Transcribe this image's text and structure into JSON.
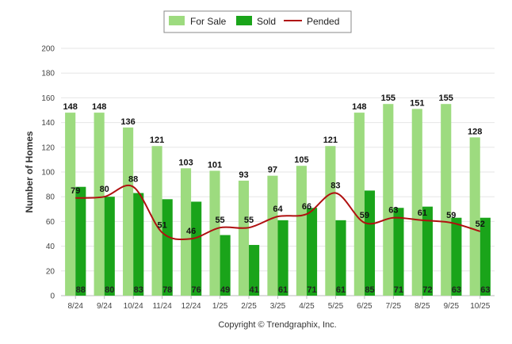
{
  "chart_data": {
    "type": "bar",
    "ylabel": "Number of Homes",
    "ylim": [
      0,
      200
    ],
    "yticks": [
      0,
      20,
      40,
      60,
      80,
      100,
      120,
      140,
      160,
      180,
      200
    ],
    "grid": true,
    "legend_position": "top-center",
    "categories": [
      "8/24",
      "9/24",
      "10/24",
      "11/24",
      "12/24",
      "1/25",
      "2/25",
      "3/25",
      "4/25",
      "5/25",
      "6/25",
      "7/25",
      "8/25",
      "9/25",
      "10/25"
    ],
    "series": [
      {
        "name": "For Sale",
        "type": "bar",
        "color": "#9ddb7f",
        "values": [
          148,
          148,
          136,
          121,
          103,
          101,
          93,
          97,
          105,
          121,
          148,
          155,
          151,
          155,
          128
        ]
      },
      {
        "name": "Sold",
        "type": "bar",
        "color": "#1aa41a",
        "values": [
          88,
          80,
          83,
          78,
          76,
          49,
          41,
          61,
          71,
          61,
          85,
          71,
          72,
          63,
          63
        ]
      },
      {
        "name": "Pended",
        "type": "line",
        "color": "#b01010",
        "values": [
          79,
          80,
          88,
          51,
          46,
          55,
          55,
          64,
          66,
          83,
          59,
          63,
          61,
          59,
          52
        ]
      }
    ]
  },
  "footer": {
    "copyright": "Copyright © Trendgraphix, Inc."
  }
}
